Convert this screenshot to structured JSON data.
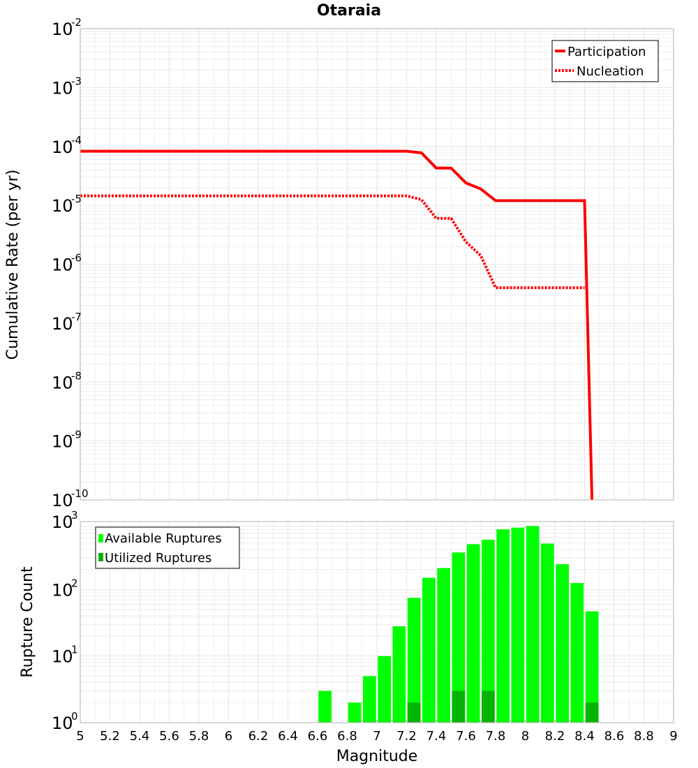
{
  "colors": {
    "participation": "#ff0000",
    "nucleation": "#ff0000",
    "available": "#00ff00",
    "utilized": "#00b400",
    "grid": "#e6e6e6",
    "frame": "#b0b0b0"
  },
  "chart_data": [
    {
      "type": "line",
      "title": "Otaraia",
      "xlabel": "",
      "ylabel": "Cumulative Rate (per yr)",
      "yscale": "log",
      "xlim": [
        5,
        9
      ],
      "ylim_exponents": [
        -10,
        -2
      ],
      "yticks": [
        {
          "base": "10",
          "exp": "-2"
        },
        {
          "base": "10",
          "exp": "-3"
        },
        {
          "base": "10",
          "exp": "-4"
        },
        {
          "base": "10",
          "exp": "-5"
        },
        {
          "base": "10",
          "exp": "-6"
        },
        {
          "base": "10",
          "exp": "-7"
        },
        {
          "base": "10",
          "exp": "-8"
        },
        {
          "base": "10",
          "exp": "-9"
        },
        {
          "base": "10",
          "exp": "-10"
        }
      ],
      "legend": [
        "Participation",
        "Nucleation"
      ],
      "series": [
        {
          "name": "Participation",
          "style": "solid",
          "x": [
            5.0,
            7.2,
            7.3,
            7.4,
            7.5,
            7.6,
            7.7,
            7.8,
            8.4,
            8.45
          ],
          "y": [
            8.3e-05,
            8.3e-05,
            7.8e-05,
            4.3e-05,
            4.3e-05,
            2.4e-05,
            1.9e-05,
            1.2e-05,
            1.2e-05,
            1e-10
          ]
        },
        {
          "name": "Nucleation",
          "style": "dotted",
          "x": [
            5.0,
            7.2,
            7.3,
            7.4,
            7.5,
            7.6,
            7.7,
            7.8,
            8.4
          ],
          "y": [
            1.45e-05,
            1.45e-05,
            1.25e-05,
            6e-06,
            6e-06,
            2.4e-06,
            1.4e-06,
            4e-07,
            4e-07
          ]
        }
      ]
    },
    {
      "type": "bar",
      "title": "",
      "xlabel": "Magnitude",
      "ylabel": "Rupture Count",
      "yscale": "log",
      "xlim": [
        5,
        9
      ],
      "ylim_exponents": [
        0,
        3
      ],
      "xticks": [
        "5",
        "5.2",
        "5.4",
        "5.6",
        "5.8",
        "6",
        "6.2",
        "6.4",
        "6.6",
        "6.8",
        "7",
        "7.2",
        "7.4",
        "7.6",
        "7.8",
        "8",
        "8.2",
        "8.4",
        "8.6",
        "8.8",
        "9"
      ],
      "yticks": [
        {
          "base": "10",
          "exp": "3"
        },
        {
          "base": "10",
          "exp": "2"
        },
        {
          "base": "10",
          "exp": "1"
        },
        {
          "base": "10",
          "exp": "0"
        }
      ],
      "legend": [
        "Available Ruptures",
        "Utilized Ruptures"
      ],
      "bar_centers": [
        6.65,
        6.75,
        6.85,
        6.95,
        7.05,
        7.15,
        7.25,
        7.35,
        7.45,
        7.55,
        7.65,
        7.75,
        7.85,
        7.95,
        8.05,
        8.15,
        8.25,
        8.35,
        8.45
      ],
      "series": [
        {
          "name": "Available Ruptures",
          "values": [
            3,
            0,
            2,
            5,
            10,
            28,
            75,
            150,
            210,
            360,
            480,
            560,
            800,
            850,
            900,
            490,
            240,
            125,
            47
          ]
        },
        {
          "name": "Utilized Ruptures",
          "values": [
            0,
            0,
            0,
            0,
            0,
            0,
            2,
            1,
            0,
            3,
            1,
            3,
            0,
            0,
            0,
            0,
            0,
            0,
            2
          ]
        }
      ]
    }
  ]
}
